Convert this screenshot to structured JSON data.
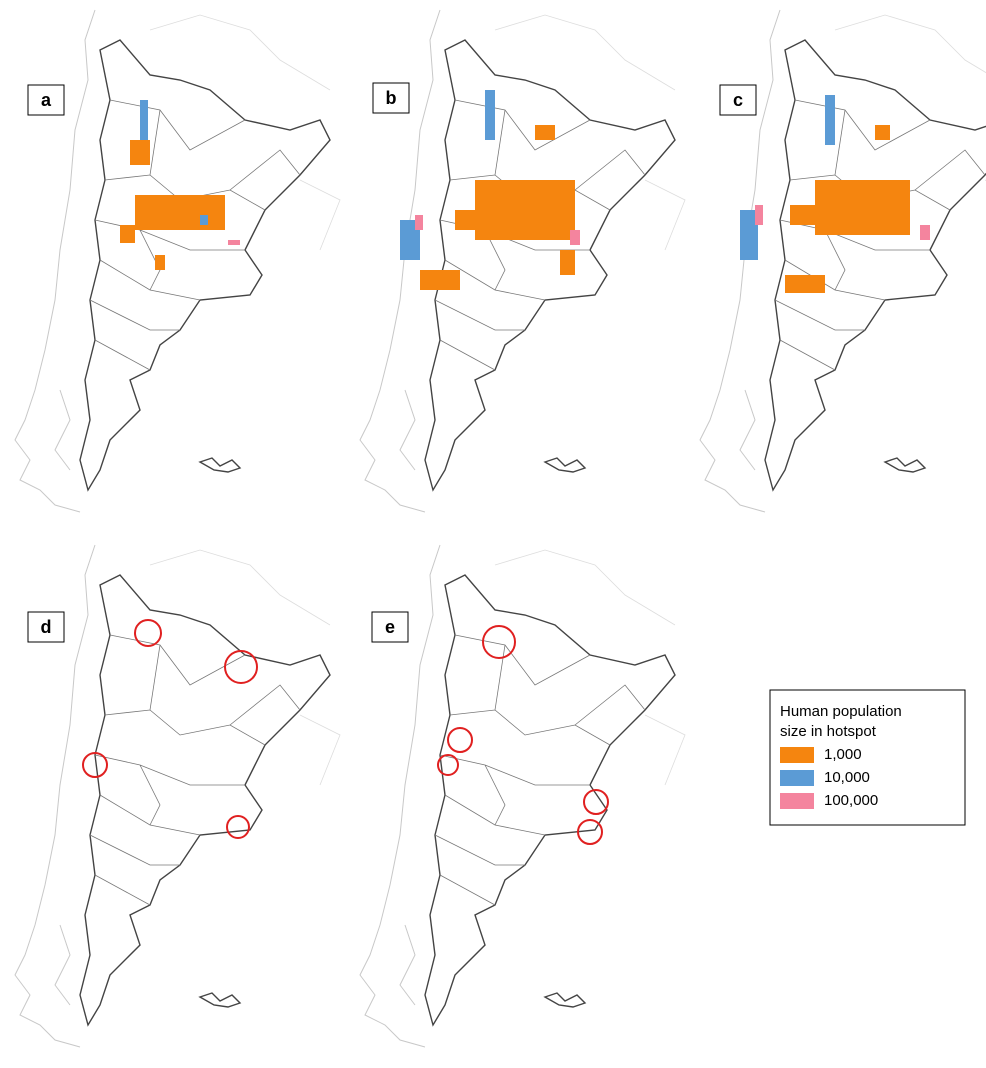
{
  "panels": [
    {
      "label": "a"
    },
    {
      "label": "b"
    },
    {
      "label": "c"
    },
    {
      "label": "d"
    },
    {
      "label": "e"
    }
  ],
  "legend": {
    "title": "Human population size in hotspot",
    "items": [
      {
        "label": "1,000",
        "color": "#f5850f"
      },
      {
        "label": "10,000",
        "color": "#5b9bd5"
      },
      {
        "label": "100,000",
        "color": "#f4849e"
      }
    ]
  }
}
